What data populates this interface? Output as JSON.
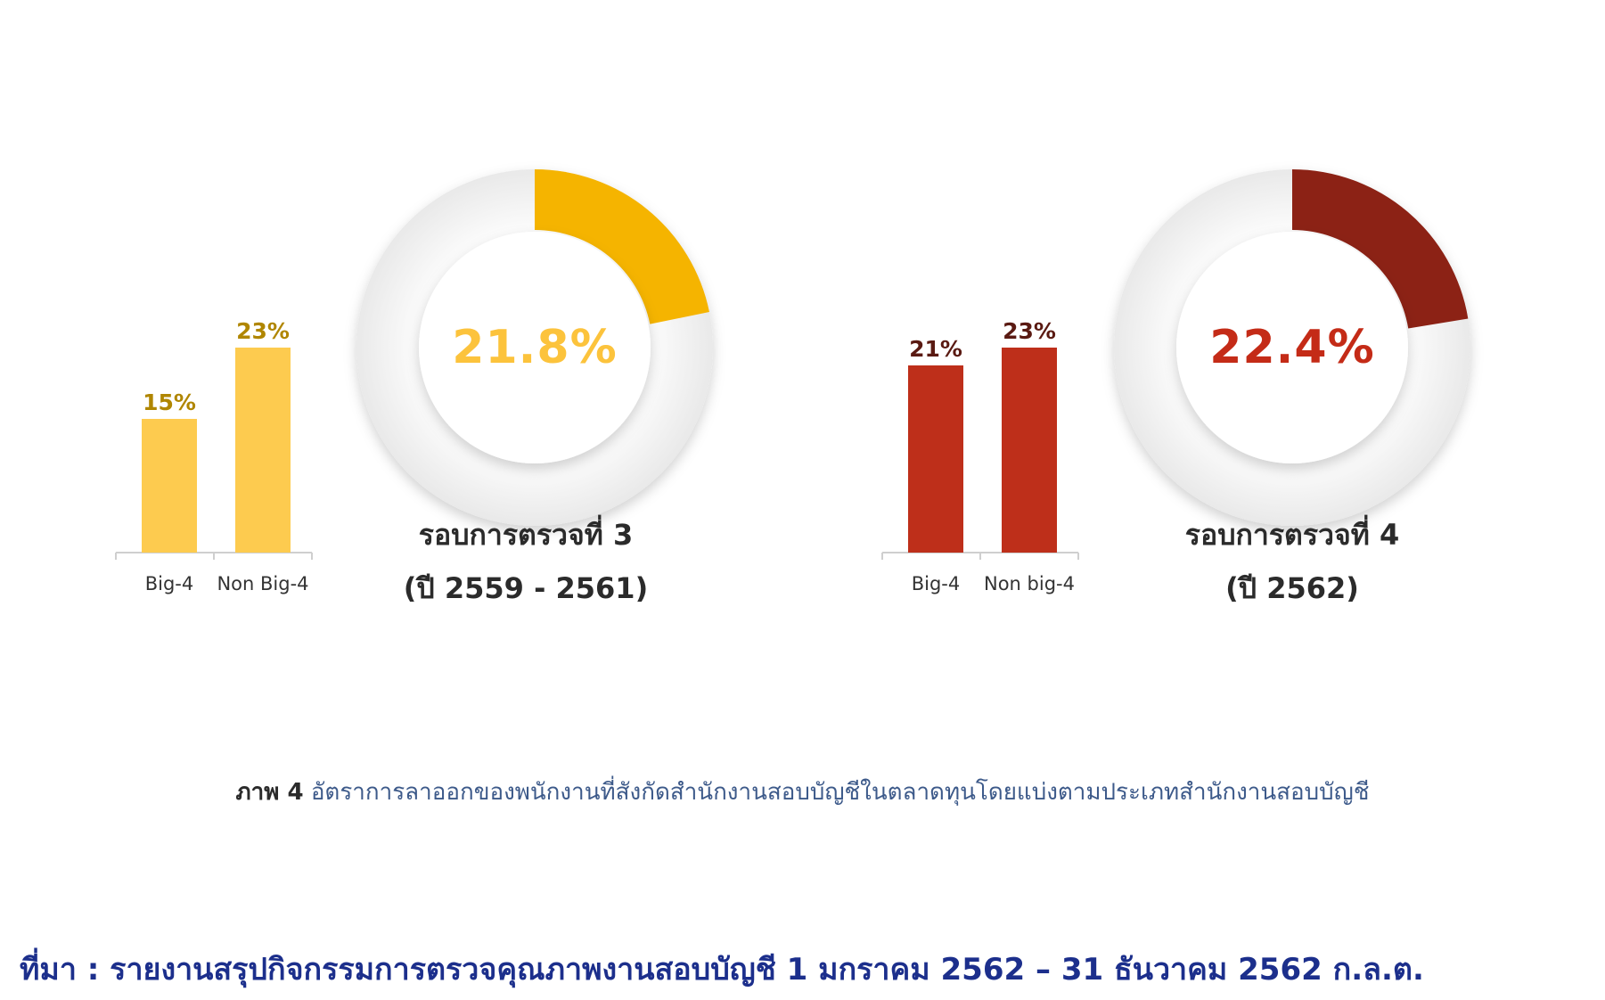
{
  "chart_data": [
    {
      "type": "pie",
      "donut": true,
      "value_label": "21.8%",
      "value": 21.8,
      "accent_color": "#f5b400",
      "text_color": "#fcc33c",
      "title_line1": "รอบการตรวจที่ 3",
      "title_line2": "(ปี 2559 - 2561)"
    },
    {
      "type": "bar",
      "categories": [
        "Big-4",
        "Non Big-4"
      ],
      "values": [
        15,
        23
      ],
      "labels": [
        "15%",
        "23%"
      ],
      "bar_color": "#fdcb4f",
      "label_color": "#b08600"
    },
    {
      "type": "pie",
      "donut": true,
      "value_label": "22.4%",
      "value": 22.4,
      "accent_color": "#8c2215",
      "text_color": "#c42b17",
      "title_line1": "รอบการตรวจที่ 4",
      "title_line2": "(ปี 2562)"
    },
    {
      "type": "bar",
      "categories": [
        "Big-4",
        "Non big-4"
      ],
      "values": [
        21,
        23
      ],
      "labels": [
        "21%",
        "23%"
      ],
      "bar_color": "#be2f1a",
      "label_color": "#5a1a12"
    }
  ],
  "caption": {
    "prefix": "ภาพ 4",
    "text": "อัตราการลาออกของพนักงานที่สังกัดสำนักงานสอบบัญชีในตลาดทุนโดยแบ่งตามประเภทสำนักงานสอบบัญชี"
  },
  "source": "ที่มา : รายงานสรุปกิจกรรมการตรวจคุณภาพงานสอบบัญชี 1 มกราคม 2562 – 31 ธันวาคม 2562   ก.ล.ต."
}
